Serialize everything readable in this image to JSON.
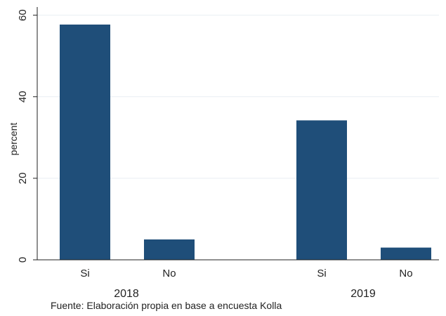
{
  "chart_data": {
    "type": "bar",
    "groups": [
      {
        "label": "2018",
        "categories": [
          "Si",
          "No"
        ],
        "values": [
          57.7,
          5.0
        ]
      },
      {
        "label": "2019",
        "categories": [
          "Si",
          "No"
        ],
        "values": [
          34.2,
          3.0
        ]
      }
    ],
    "ylabel": "percent",
    "ylim": [
      0,
      62
    ],
    "yticks": [
      0,
      20,
      40,
      60
    ],
    "grid": true,
    "bar_color": "#1f4e79",
    "note": "Fuente: Elaboración propia en base a encuesta Kolla"
  }
}
